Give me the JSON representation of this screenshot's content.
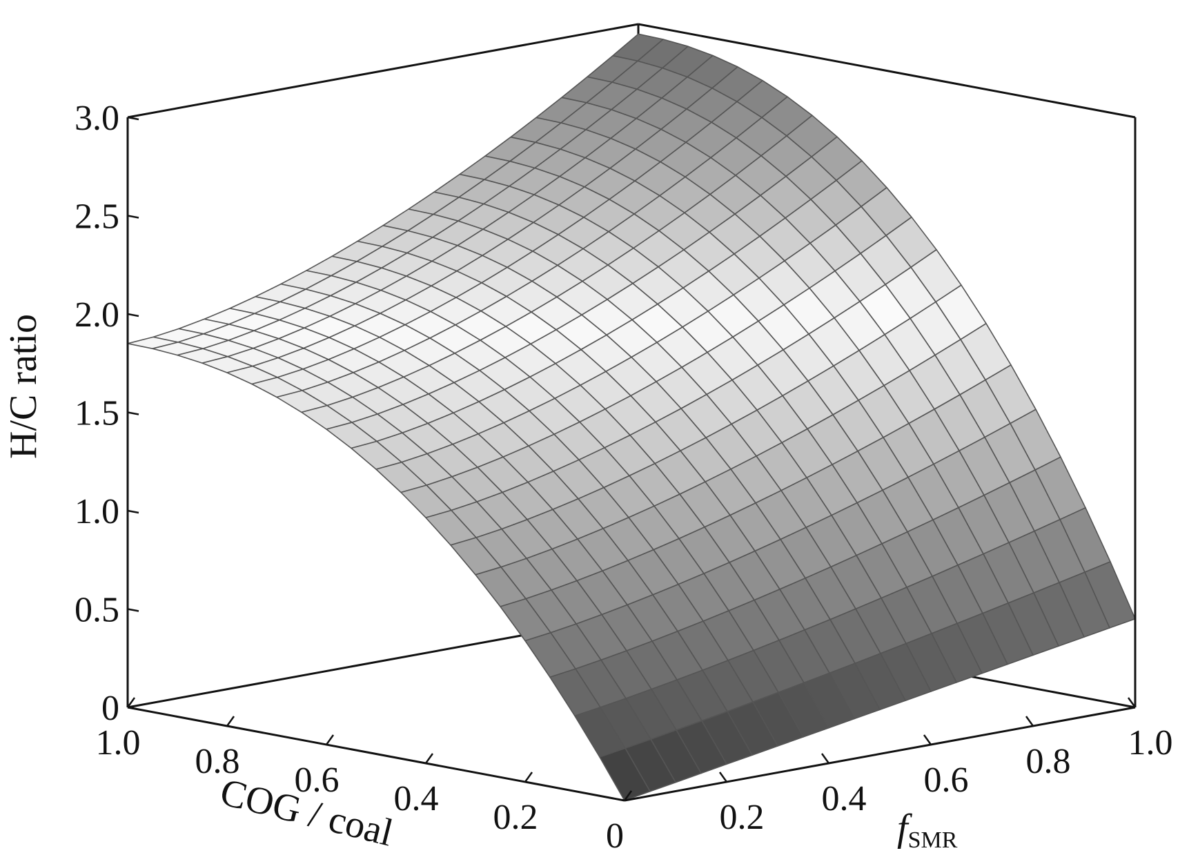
{
  "chart_data": {
    "type": "surface3d",
    "title": "",
    "x_axis": {
      "label": "COG / coal",
      "ticks": [
        "0",
        "0.2",
        "0.4",
        "0.6",
        "0.8",
        "1.0"
      ],
      "range": [
        0,
        1
      ]
    },
    "y_axis": {
      "label_base": "f",
      "label_sub": "SMR",
      "ticks": [
        "0.2",
        "0.4",
        "0.6",
        "0.8",
        "1.0"
      ],
      "range": [
        0,
        1
      ]
    },
    "z_axis": {
      "label": "H/C ratio",
      "ticks": [
        "0",
        "0.5",
        "1.0",
        "1.5",
        "2.0",
        "2.5",
        "3.0"
      ],
      "range": [
        0,
        3
      ]
    },
    "grid": false,
    "colormap": "grayscale (dark at low and high H/C, white at mid H/C)",
    "surface": {
      "x": [
        0,
        0.05,
        0.1,
        0.15,
        0.2,
        0.25,
        0.3,
        0.35,
        0.4,
        0.45,
        0.5,
        0.55,
        0.6,
        0.65,
        0.7,
        0.75,
        0.8,
        0.85,
        0.9,
        0.95,
        1.0
      ],
      "y": [
        0,
        0.05,
        0.1,
        0.15,
        0.2,
        0.25,
        0.3,
        0.35,
        0.4,
        0.45,
        0.5,
        0.55,
        0.6,
        0.65,
        0.7,
        0.75,
        0.8,
        0.85,
        0.9,
        0.95,
        1.0
      ],
      "z_corners": {
        "cog0_f0": 0.0,
        "cog0_f1": 0.45,
        "cog1_f0": 1.85,
        "cog1_f1": 2.95
      },
      "note": "H/C rises steeply with COG/coal at low COG, then flattens; rises with f_SMR"
    }
  }
}
